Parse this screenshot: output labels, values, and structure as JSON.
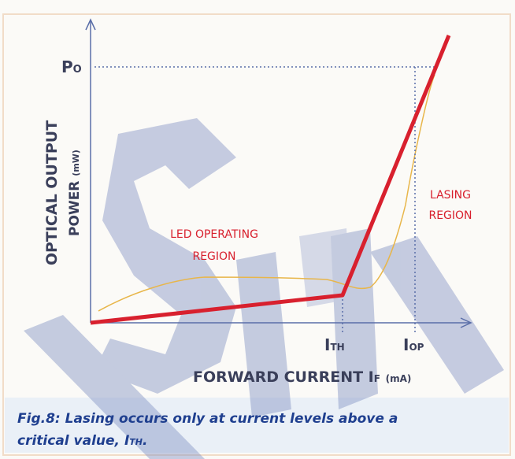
{
  "diagram": {
    "y_axis": {
      "line1": "OPTICAL OUTPUT",
      "line2": "POWER",
      "unit": "(mW)"
    },
    "x_axis": {
      "main": "FORWARD CURRENT I",
      "sub": "F",
      "unit": "(mA)"
    },
    "po_label": {
      "main": "P",
      "sub": "O"
    },
    "ith_label": {
      "main": "I",
      "sub": "TH"
    },
    "iop_label": {
      "main": "I",
      "sub": "OP"
    },
    "led_region": {
      "line1": "LED OPERATING",
      "line2": "REGION"
    },
    "lasing_region": {
      "line1": "LASING",
      "line2": "REGION"
    },
    "caption": {
      "line1": "Fig.8: Lasing occurs only at current levels above a",
      "line2": "critical value, ",
      "symbol": {
        "main": "I",
        "sub": "TH"
      },
      "end": "."
    }
  }
}
